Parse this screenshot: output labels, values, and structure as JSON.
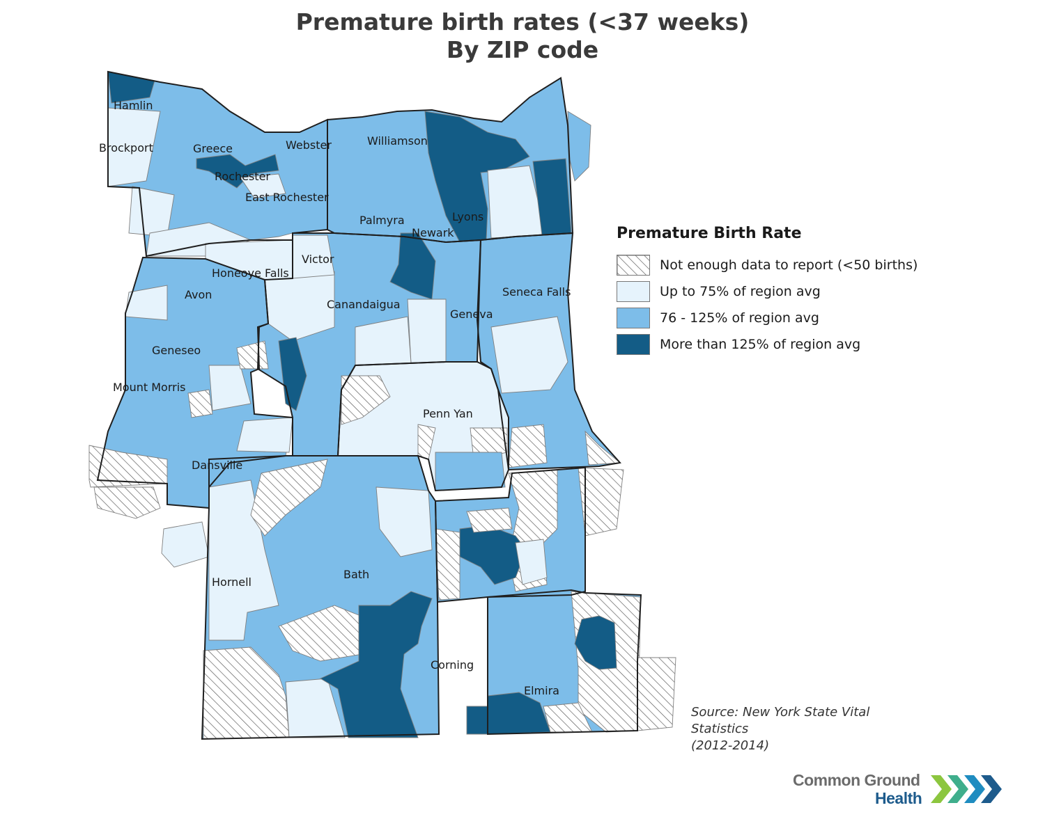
{
  "title_line1": "Premature birth rates (<37 weeks)",
  "title_line2": "By ZIP code",
  "colors": {
    "no_data": "#ffffff",
    "low": "#e6f3fc",
    "mid": "#7dbde9",
    "high": "#135c86",
    "county_border": "#1f1f1f",
    "zip_border": "#7f7f7f"
  },
  "places": [
    "Hamlin",
    "Brockport",
    "Greece",
    "Webster",
    "Williamson",
    "Rochester",
    "East Rochester",
    "Palmyra",
    "Lyons",
    "Newark",
    "Victor",
    "Honeoye Falls",
    "Avon",
    "Canandaigua",
    "Seneca Falls",
    "Geneva",
    "Geneseo",
    "Mount Morris",
    "Penn Yan",
    "Dansville",
    "Bath",
    "Hornell",
    "Corning",
    "Elmira"
  ],
  "legend": {
    "title": "Premature Birth Rate",
    "items": [
      {
        "label": "Not enough data to report (<50 births)",
        "color_key": "no_data",
        "hatched": true
      },
      {
        "label": "Up to 75% of region avg",
        "color_key": "low",
        "hatched": false
      },
      {
        "label": "76 - 125% of region avg",
        "color_key": "mid",
        "hatched": false
      },
      {
        "label": "More than 125% of region avg",
        "color_key": "high",
        "hatched": false
      }
    ]
  },
  "source_line1": "Source: New York State Vital Statistics",
  "source_line2": "(2012-2014)",
  "logo": {
    "line1": "Common Ground",
    "line2": "Health"
  }
}
